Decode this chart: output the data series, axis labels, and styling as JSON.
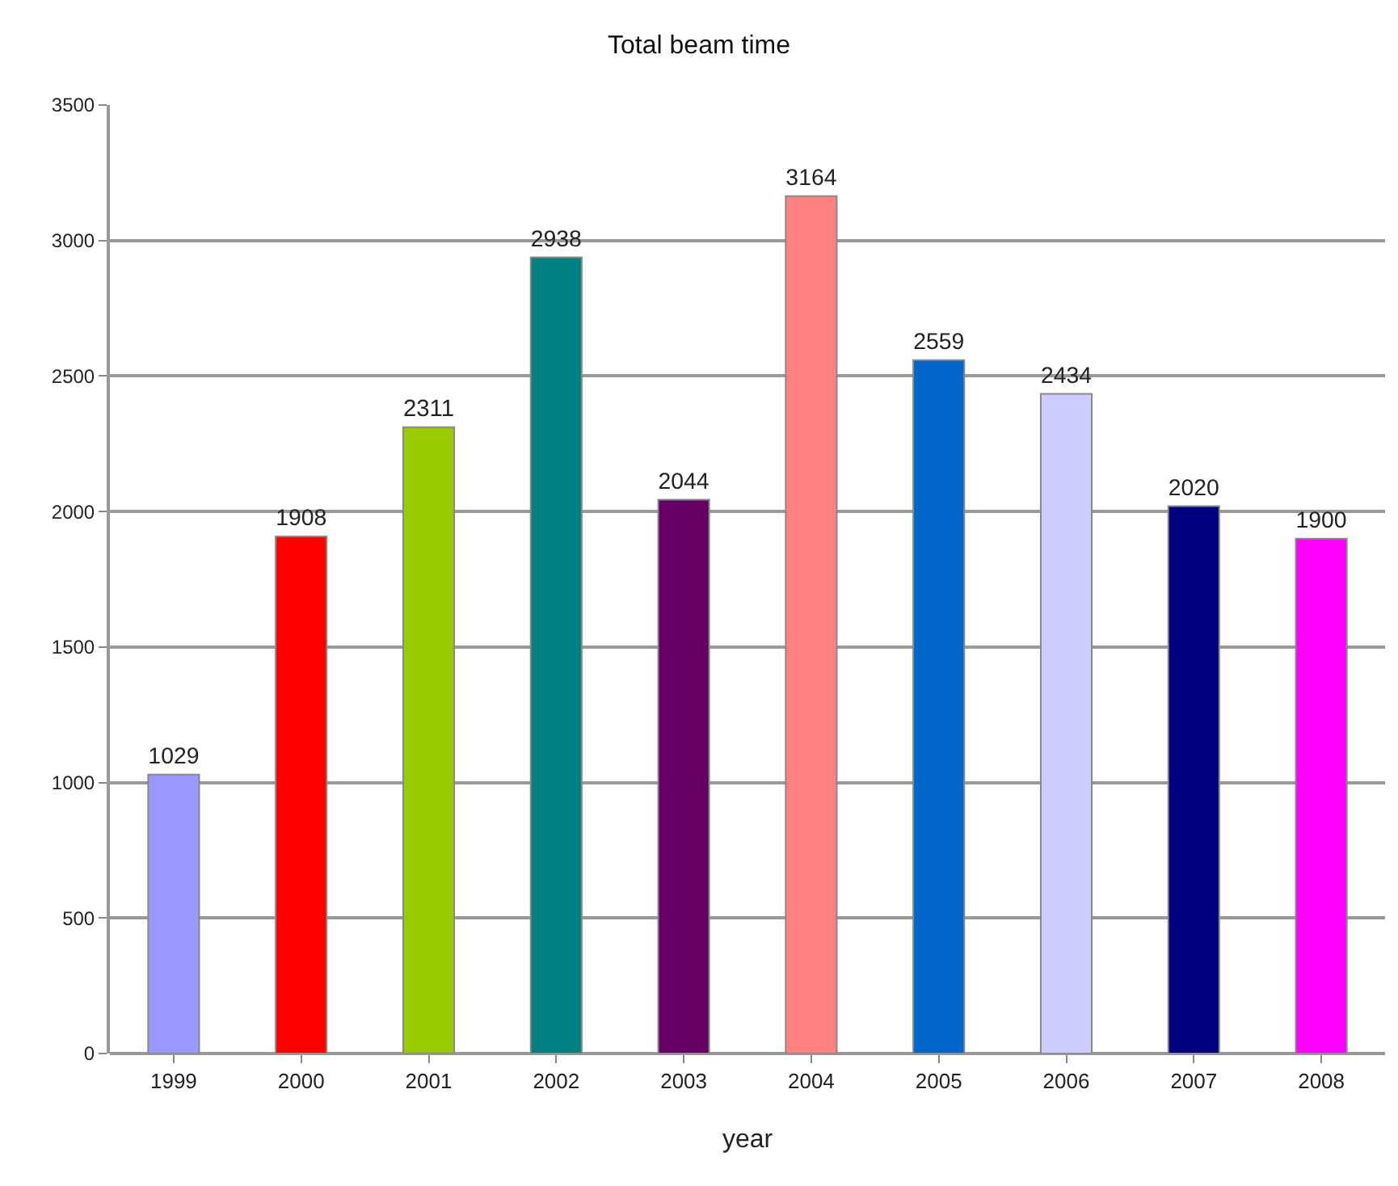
{
  "chart_data": {
    "type": "bar",
    "title": "Total beam time",
    "xlabel": "year",
    "categories": [
      "1999",
      "2000",
      "2001",
      "2002",
      "2003",
      "2004",
      "2005",
      "2006",
      "2007",
      "2008"
    ],
    "values": [
      1029,
      1908,
      2311,
      2938,
      2044,
      3164,
      2559,
      2434,
      2020,
      1900
    ],
    "colors": [
      "#9999ff",
      "#ff0000",
      "#99cc00",
      "#008080",
      "#660066",
      "#ff8080",
      "#0066cc",
      "#ccccff",
      "#000080",
      "#ff00ff"
    ],
    "ylim": [
      0,
      3500
    ],
    "yticks": [
      0,
      500,
      1000,
      1500,
      2000,
      2500,
      3000,
      3500
    ],
    "grid": "y",
    "data_labels": true,
    "legend": false
  }
}
